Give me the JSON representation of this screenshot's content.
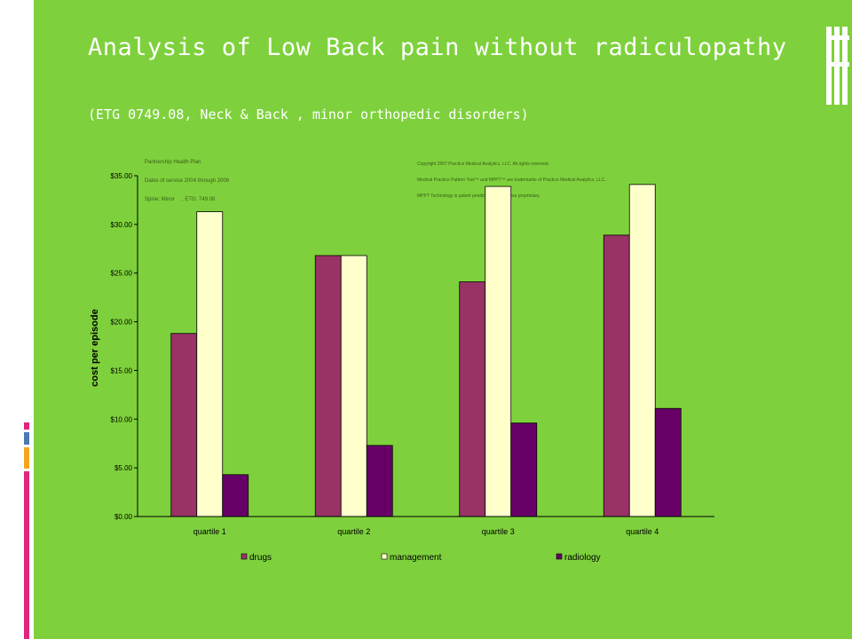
{
  "title": "Analysis of Low Back pain without radiculopathy",
  "subtitle": "(ETG 0749.08, Neck & Back , minor orthopedic disorders)",
  "notes": {
    "plan": [
      "Partnership Health Plan",
      "Dates of service 2004 through 2006",
      "Spine: Minor     , ETG: 749.08"
    ],
    "copyright": [
      "Copyright 2007 Practice Medical Analytics, LLC. All rights reserved.",
      "Medical Practice Pattern Tool™ and MPPT™ are trademarks of Practice Medical Analytics, LLC.",
      "MPPT Technology is patent pending and otherwise proprietary."
    ]
  },
  "colors": {
    "background": "#7ed13c",
    "drugs": "#993366",
    "management": "#ffffcc",
    "radiology": "#660066",
    "accent_pink": "#e0257c",
    "accent_orange": "#f3a61d",
    "accent_blue": "#4a7ab0"
  },
  "chart_data": {
    "type": "bar",
    "title": "",
    "xlabel": "",
    "ylabel": "cost per episode",
    "ylim": [
      0,
      35
    ],
    "y_ticks": [
      "$0.00",
      "$5.00",
      "$10.00",
      "$15.00",
      "$20.00",
      "$25.00",
      "$30.00",
      "$35.00"
    ],
    "categories": [
      "quartile 1",
      "quartile 2",
      "quartile 3",
      "quartile 4"
    ],
    "series": [
      {
        "name": "drugs",
        "values": [
          18.8,
          26.8,
          24.1,
          28.9
        ]
      },
      {
        "name": "management",
        "values": [
          31.3,
          26.8,
          33.9,
          34.1
        ]
      },
      {
        "name": "radiology",
        "values": [
          4.3,
          7.3,
          9.6,
          11.1
        ]
      }
    ],
    "legend_position": "bottom",
    "grid": false
  }
}
